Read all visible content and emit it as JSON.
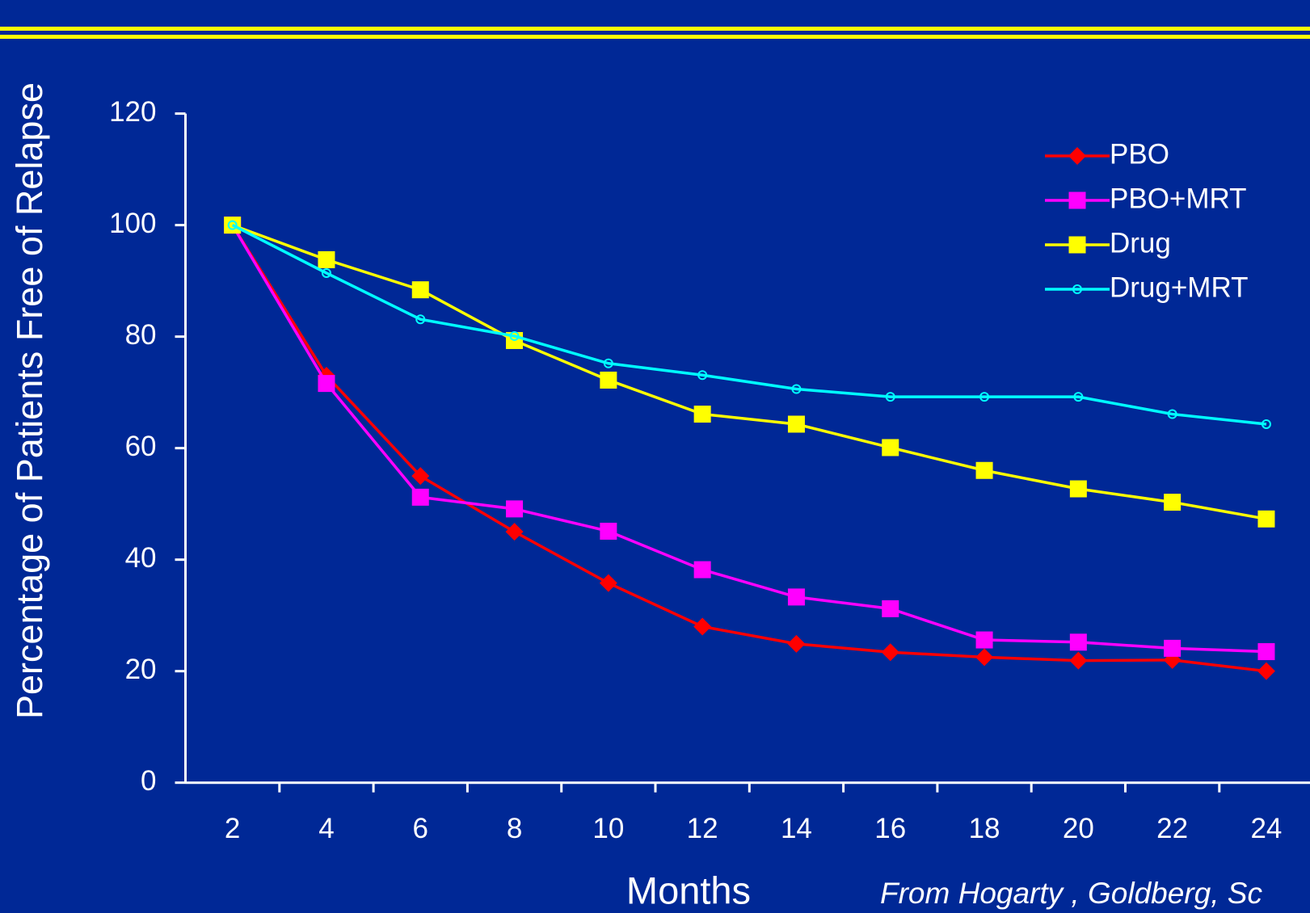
{
  "chart_data": {
    "type": "line",
    "x_label": "Months",
    "y_label": "Percentage of Patients Free of Relapse",
    "note": "From Hogarty , Goldberg, Sc",
    "categories": [
      "2",
      "4",
      "6",
      "8",
      "10",
      "12",
      "14",
      "16",
      "18",
      "20",
      "22",
      "24"
    ],
    "series": [
      {
        "name": "PBO",
        "color": "#ff0000",
        "marker": "diamond",
        "values": [
          100,
          73,
          55,
          45,
          35.8,
          28,
          24.9,
          23.4,
          22.5,
          21.9,
          22,
          20
        ]
      },
      {
        "name": "PBO+MRT",
        "color": "#ff00ff",
        "marker": "square",
        "values": [
          100,
          71.6,
          51.2,
          49.1,
          45.1,
          38.2,
          33.3,
          31.2,
          25.6,
          25.2,
          24.1,
          23.5
        ]
      },
      {
        "name": "Drug",
        "color": "#ffff00",
        "marker": "square",
        "values": [
          100,
          93.8,
          88.4,
          79.3,
          72.2,
          66.1,
          64.3,
          60.1,
          56,
          52.7,
          50.3,
          47.3
        ]
      },
      {
        "name": "Drug+MRT",
        "color": "#00ffff",
        "marker": "circle",
        "values": [
          100,
          91.4,
          83.1,
          80.1,
          75.2,
          73.1,
          70.6,
          69.2,
          69.2,
          69.2,
          66.1,
          64.3
        ]
      }
    ],
    "ylim": [
      0,
      120
    ],
    "yticks": [
      0,
      20,
      40,
      60,
      80,
      100,
      120
    ],
    "legend": "upper right"
  }
}
